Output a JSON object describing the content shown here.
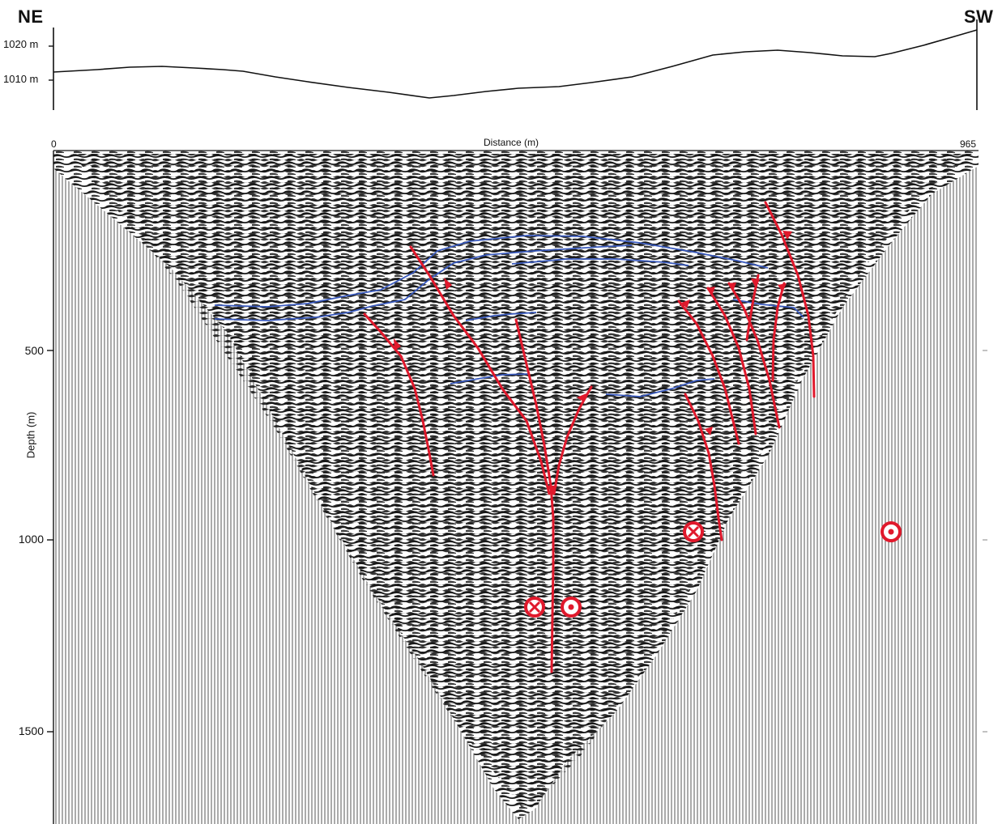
{
  "labels": {
    "left_direction": "NE",
    "right_direction": "SW",
    "x_axis_title": "Distance (m)",
    "x_start": "0",
    "x_end": "965",
    "y_axis_title": "Depth (m)"
  },
  "elevation_ticks": [
    "1020 m",
    "1010 m"
  ],
  "depth_ticks": [
    "500",
    "1000",
    "1500"
  ],
  "colors": {
    "seismic_fill": "#2a2a2a",
    "trace_lines": "#555555",
    "fault_red": "#e0192c",
    "horizon_blue": "#3a5bbf",
    "axis": "#111111"
  },
  "symbols": [
    "into-page-symbol",
    "out-of-page-symbol"
  ]
}
